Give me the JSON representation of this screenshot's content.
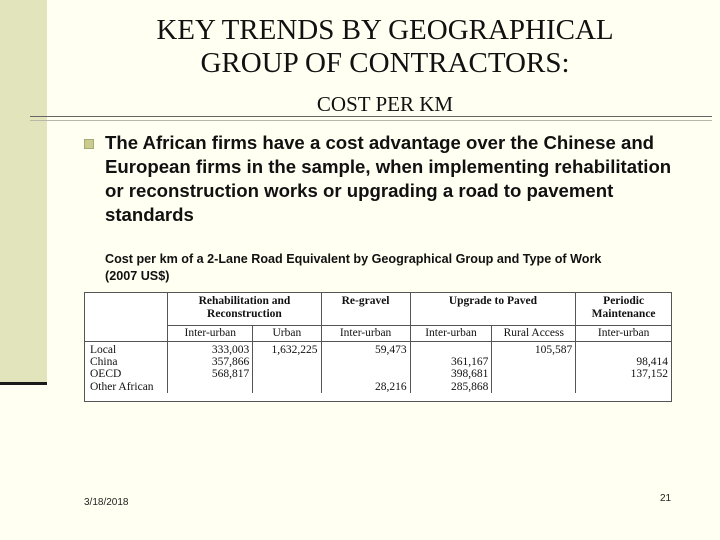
{
  "slide": {
    "title_line1": "KEY TRENDS BY GEOGRAPHICAL",
    "title_line2": "GROUP OF CONTRACTORS:",
    "subtitle": "COST PER KM",
    "bullet": "The African firms have a cost advantage over the Chinese and European firms in the sample, when implementing rehabilitation or reconstruction works or upgrading a road to pavement standards",
    "caption_line1": "Cost per km of a 2-Lane Road Equivalent by Geographical Group and Type of Work",
    "caption_line2": "(2007 US$)",
    "date": "3/18/2018",
    "page_number": "21"
  },
  "table": {
    "groups": [
      "Rehabilitation and Reconstruction",
      "Re-gravel",
      "Upgrade to Paved",
      "Periodic Maintenance"
    ],
    "subheaders": [
      "Inter-urban",
      "Urban",
      "Inter-urban",
      "Inter-urban",
      "Rural Access",
      "Inter-urban"
    ],
    "rows": [
      {
        "label": "Local",
        "cells": [
          "333,003",
          "1,632,225",
          "59,473",
          "",
          "105,587",
          ""
        ]
      },
      {
        "label": "China",
        "cells": [
          "357,866",
          "",
          "",
          "361,167",
          "",
          "98,414"
        ]
      },
      {
        "label": "OECD",
        "cells": [
          "568,817",
          "",
          "",
          "398,681",
          "",
          "137,152"
        ]
      },
      {
        "label": "Other African",
        "cells": [
          "",
          "",
          "28,216",
          "285,868",
          "",
          ""
        ]
      }
    ]
  }
}
